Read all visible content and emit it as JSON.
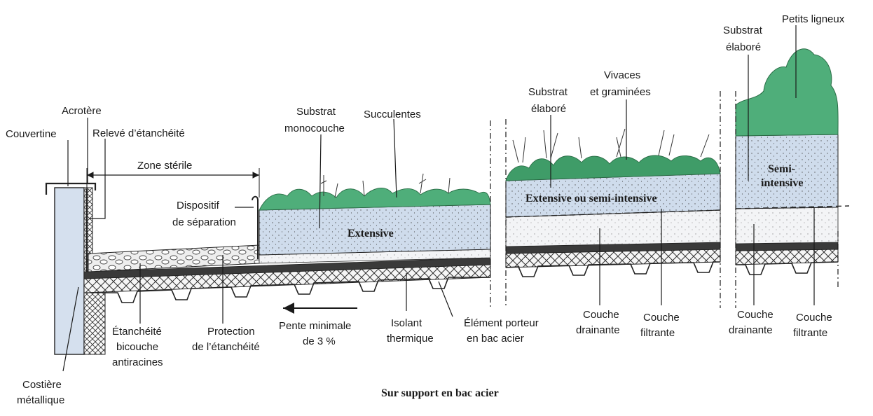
{
  "labels": {
    "acrotere": "Acrotère",
    "couvertine": "Couvertine",
    "releve": "Relevé d’étanchéité",
    "zone_sterile": "Zone stérile",
    "dispositif_1": "Dispositif",
    "dispositif_2": "de séparation",
    "substrat_mono_1": "Substrat",
    "substrat_mono_2": "monocouche",
    "succulentes": "Succulentes",
    "substrat_elab_a_1": "Substrat",
    "substrat_elab_a_2": "élaboré",
    "vivaces_1": "Vivaces",
    "vivaces_2": "et graminées",
    "substrat_elab_b_1": "Substrat",
    "substrat_elab_b_2": "élaboré",
    "petits_ligneux": "Petits ligneux",
    "extensive": "Extensive",
    "ext_semi": "Extensive ou semi-intensive",
    "semi_1": "Semi-",
    "semi_2": "intensive",
    "etancheite_1": "Étanchéité",
    "etancheite_2": "bicouche",
    "etancheite_3": "antiracines",
    "protection_1": "Protection",
    "protection_2": "de l’étanchéité",
    "pente_1": "Pente minimale",
    "pente_2": "de 3 %",
    "isolant_1": "Isolant",
    "isolant_2": "thermique",
    "element_1": "Élément porteur",
    "element_2": "en bac acier",
    "couche_dr_a_1": "Couche",
    "couche_dr_a_2": "drainante",
    "couche_fi_a_1": "Couche",
    "couche_fi_a_2": "filtrante",
    "couche_dr_b_1": "Couche",
    "couche_dr_b_2": "drainante",
    "couche_fi_b_1": "Couche",
    "couche_fi_b_2": "filtrante",
    "costiere_1": "Costière",
    "costiere_2": "métallique",
    "caption": "Sur support en bac acier"
  },
  "colors": {
    "substrate": "#cfdcec",
    "vegetation": "#4fae7a",
    "vegetation_dark": "#2f8a58",
    "drain": "#eef0f3",
    "insulation": "#f4f4f4",
    "gravel": "#e6e6e6"
  }
}
